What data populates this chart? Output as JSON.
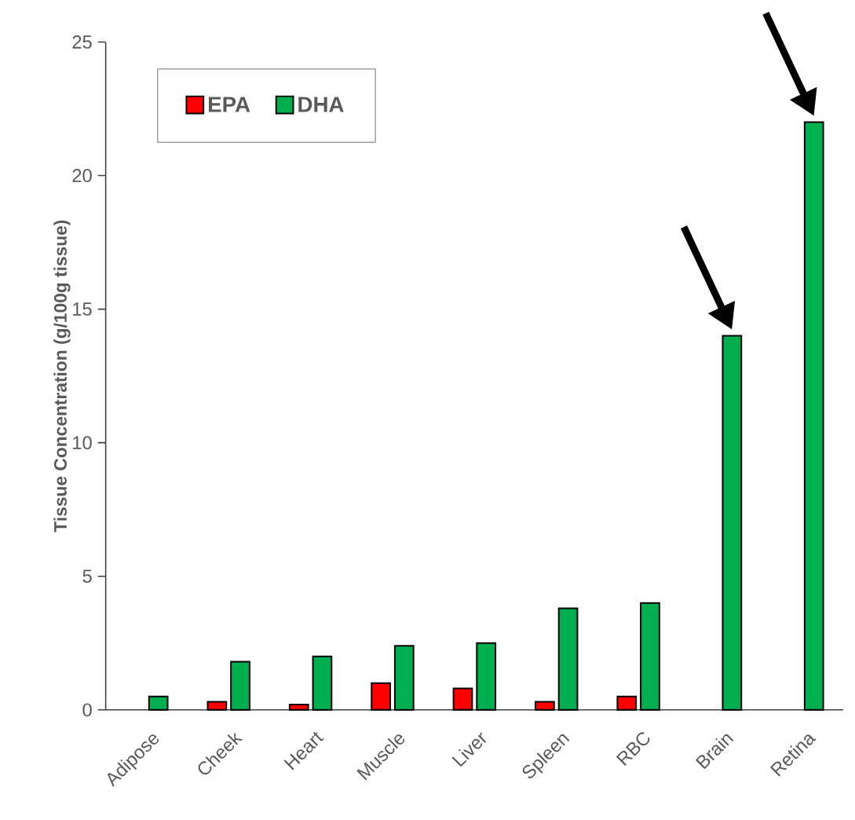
{
  "chart_data": {
    "type": "bar",
    "ylabel": "Tissue Concentration (g/100g tissue)",
    "categories": [
      "Adipose",
      "Cheek",
      "Heart",
      "Muscle",
      "Liver",
      "Spleen",
      "RBC",
      "Brain",
      "Retina"
    ],
    "series": [
      {
        "name": "EPA",
        "color": "#ff0000",
        "values": [
          null,
          0.3,
          0.2,
          1.0,
          0.8,
          0.3,
          0.5,
          null,
          null
        ]
      },
      {
        "name": "DHA",
        "color": "#00b050",
        "values": [
          0.5,
          1.8,
          2.0,
          2.4,
          2.5,
          3.8,
          4.0,
          14,
          22
        ]
      }
    ],
    "ylim": [
      0,
      25
    ],
    "yticks": [
      0,
      5,
      10,
      15,
      20,
      25
    ],
    "grid": false,
    "legend": "top left"
  }
}
